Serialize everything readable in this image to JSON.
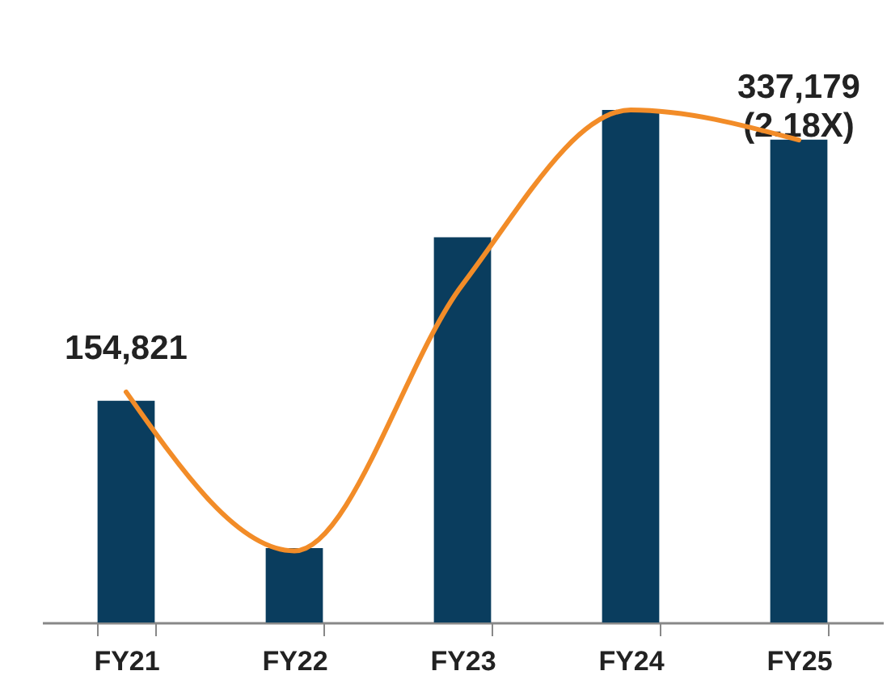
{
  "chart_data": {
    "type": "bar",
    "categories": [
      "FY21",
      "FY22",
      "FY23",
      "FY24",
      "FY25"
    ],
    "series": [
      {
        "color": "#0a3d5e",
        "values": [
          154821,
          52000,
          269000,
          358000,
          337179
        ],
        "value_labels": [
          "154,821",
          null,
          null,
          null,
          "337,179\n(2.18X)"
        ]
      },
      {
        "type": "line",
        "color": "#f28c28",
        "values": [
          161000,
          50000,
          236000,
          358000,
          337000
        ]
      }
    ]
  }
}
